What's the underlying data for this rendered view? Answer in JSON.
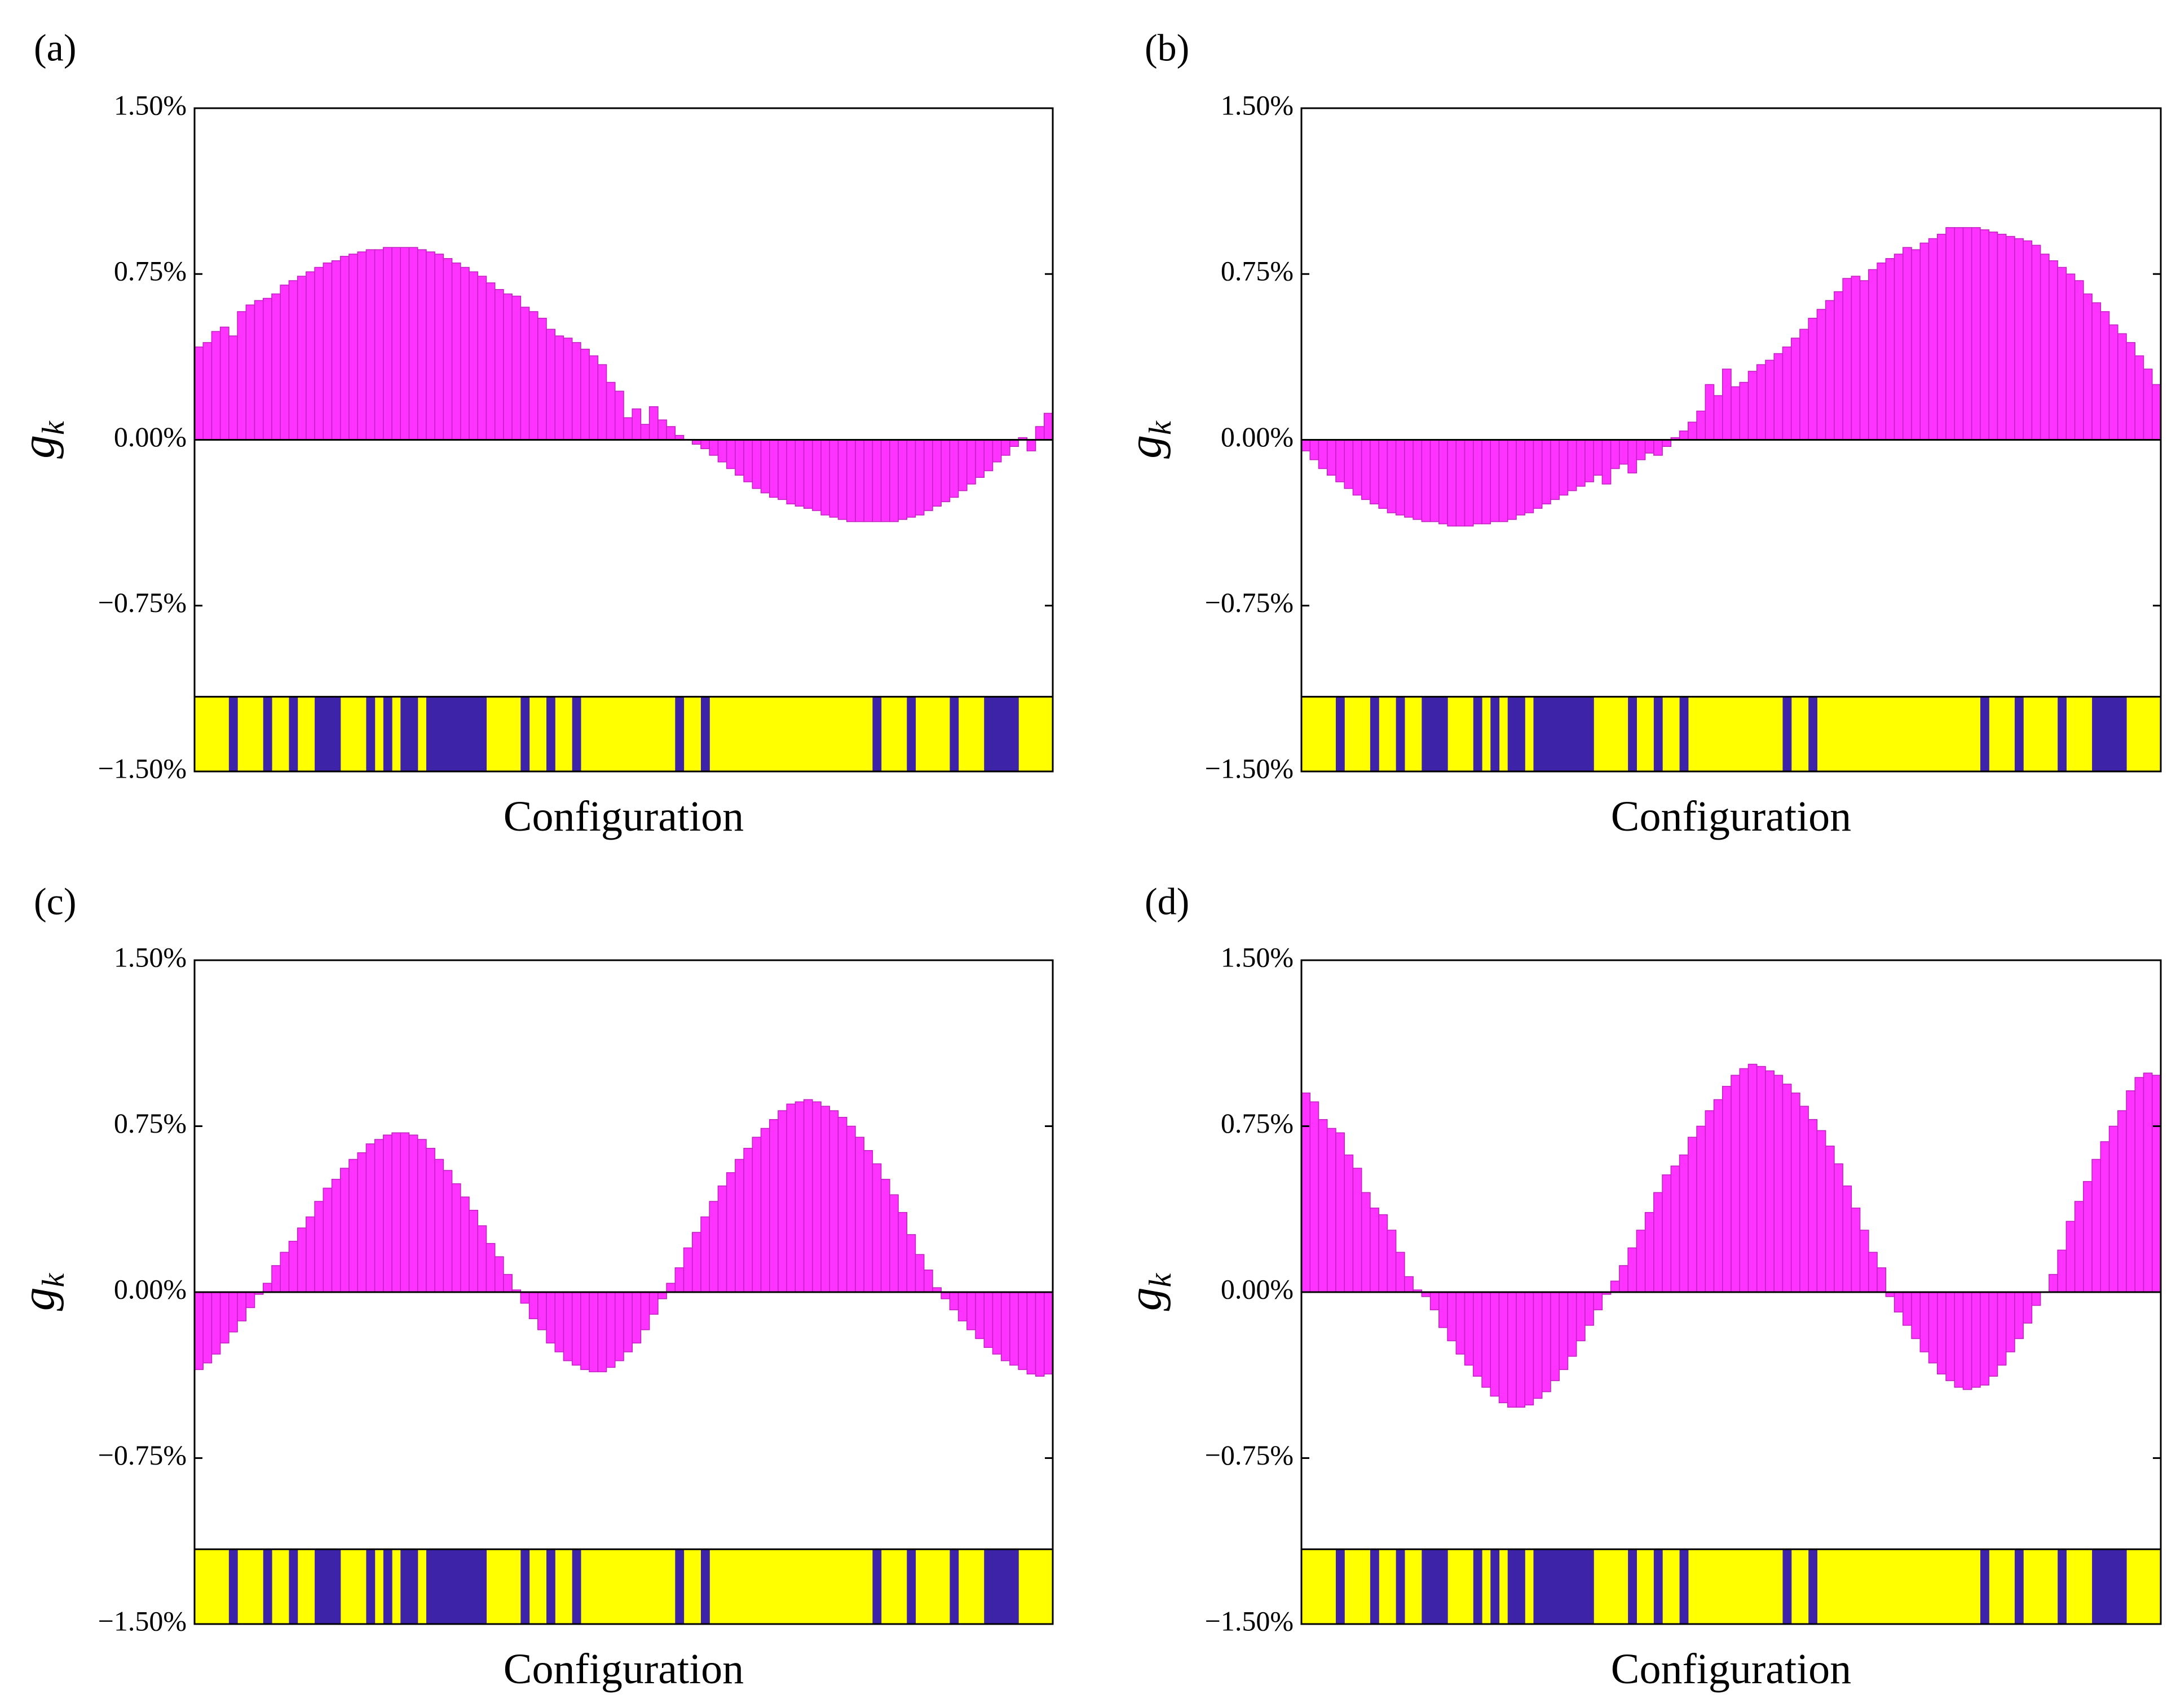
{
  "colors": {
    "bar_fill": "#ff33ff",
    "bar_edge": "#c21fc2",
    "config_yellow": "#ffff00",
    "config_blue": "#3c23a8",
    "axis": "#000000"
  },
  "chart_data": [
    {
      "panel_label": "(a)",
      "type": "bar",
      "xlabel": "Configuration",
      "ylabel_main": "g",
      "ylabel_sub": "k",
      "ylim": [
        -1.5,
        1.5
      ],
      "y_ticks": [
        "−1.50%",
        "−0.75%",
        "0.00%",
        "0.75%",
        "1.50%"
      ],
      "y_tick_values": [
        -1.5,
        -0.75,
        0,
        0.75,
        1.5
      ],
      "n_bars": 100,
      "series": [
        {
          "values": [
            0.42,
            0.44,
            0.49,
            0.51,
            0.47,
            0.58,
            0.61,
            0.63,
            0.64,
            0.66,
            0.7,
            0.72,
            0.74,
            0.76,
            0.78,
            0.8,
            0.81,
            0.83,
            0.84,
            0.85,
            0.86,
            0.86,
            0.87,
            0.87,
            0.87,
            0.87,
            0.86,
            0.85,
            0.84,
            0.82,
            0.8,
            0.78,
            0.76,
            0.74,
            0.71,
            0.68,
            0.66,
            0.65,
            0.6,
            0.58,
            0.55,
            0.5,
            0.47,
            0.46,
            0.44,
            0.41,
            0.38,
            0.34,
            0.26,
            0.22,
            0.1,
            0.14,
            0.07,
            0.15,
            0.09,
            0.06,
            0.02,
            0.0,
            -0.02,
            -0.04,
            -0.07,
            -0.1,
            -0.13,
            -0.16,
            -0.19,
            -0.22,
            -0.24,
            -0.26,
            -0.27,
            -0.29,
            -0.3,
            -0.31,
            -0.32,
            -0.34,
            -0.35,
            -0.36,
            -0.37,
            -0.37,
            -0.37,
            -0.37,
            -0.37,
            -0.37,
            -0.36,
            -0.35,
            -0.34,
            -0.32,
            -0.3,
            -0.28,
            -0.26,
            -0.23,
            -0.2,
            -0.17,
            -0.14,
            -0.1,
            -0.07,
            -0.03,
            0.01,
            -0.05,
            0.06,
            0.12
          ]
        }
      ],
      "configuration": [
        1,
        1,
        1,
        1,
        0,
        1,
        1,
        1,
        0,
        1,
        1,
        0,
        1,
        1,
        0,
        0,
        0,
        1,
        1,
        1,
        0,
        1,
        0,
        1,
        0,
        0,
        1,
        0,
        0,
        0,
        0,
        0,
        0,
        0,
        1,
        1,
        1,
        1,
        0,
        1,
        1,
        0,
        1,
        1,
        0,
        1,
        1,
        1,
        1,
        1,
        1,
        1,
        1,
        1,
        1,
        1,
        0,
        1,
        1,
        0,
        1,
        1,
        1,
        1,
        1,
        1,
        1,
        1,
        1,
        1,
        1,
        1,
        1,
        1,
        1,
        1,
        1,
        1,
        1,
        0,
        1,
        1,
        1,
        0,
        1,
        1,
        1,
        1,
        0,
        1,
        1,
        1,
        0,
        0,
        0,
        0,
        1,
        1,
        1,
        1
      ]
    },
    {
      "panel_label": "(b)",
      "type": "bar",
      "xlabel": "Configuration",
      "ylabel_main": "g",
      "ylabel_sub": "k",
      "ylim": [
        -1.5,
        1.5
      ],
      "y_ticks": [
        "−1.50%",
        "−0.75%",
        "0.00%",
        "0.75%",
        "1.50%"
      ],
      "y_tick_values": [
        -1.5,
        -0.75,
        0,
        0.75,
        1.5
      ],
      "n_bars": 100,
      "series": [
        {
          "values": [
            -0.05,
            -0.09,
            -0.13,
            -0.16,
            -0.19,
            -0.22,
            -0.25,
            -0.27,
            -0.29,
            -0.31,
            -0.33,
            -0.34,
            -0.35,
            -0.36,
            -0.37,
            -0.37,
            -0.38,
            -0.39,
            -0.39,
            -0.39,
            -0.38,
            -0.38,
            -0.37,
            -0.37,
            -0.36,
            -0.34,
            -0.33,
            -0.31,
            -0.29,
            -0.27,
            -0.25,
            -0.23,
            -0.21,
            -0.19,
            -0.16,
            -0.2,
            -0.13,
            -0.11,
            -0.15,
            -0.09,
            -0.06,
            -0.07,
            -0.03,
            0.01,
            0.04,
            0.08,
            0.13,
            0.25,
            0.2,
            0.32,
            0.24,
            0.26,
            0.31,
            0.34,
            0.36,
            0.39,
            0.42,
            0.46,
            0.5,
            0.55,
            0.59,
            0.63,
            0.67,
            0.73,
            0.74,
            0.72,
            0.77,
            0.8,
            0.82,
            0.84,
            0.87,
            0.86,
            0.89,
            0.91,
            0.93,
            0.96,
            0.96,
            0.96,
            0.96,
            0.95,
            0.94,
            0.93,
            0.92,
            0.91,
            0.9,
            0.88,
            0.84,
            0.81,
            0.78,
            0.75,
            0.72,
            0.66,
            0.62,
            0.58,
            0.52,
            0.48,
            0.44,
            0.38,
            0.32,
            0.25
          ]
        }
      ],
      "configuration": [
        1,
        1,
        1,
        1,
        0,
        1,
        1,
        1,
        0,
        1,
        1,
        0,
        1,
        1,
        0,
        0,
        0,
        1,
        1,
        1,
        0,
        1,
        0,
        1,
        0,
        0,
        1,
        0,
        0,
        0,
        0,
        0,
        0,
        0,
        1,
        1,
        1,
        1,
        0,
        1,
        1,
        0,
        1,
        1,
        0,
        1,
        1,
        1,
        1,
        1,
        1,
        1,
        1,
        1,
        1,
        1,
        0,
        1,
        1,
        0,
        1,
        1,
        1,
        1,
        1,
        1,
        1,
        1,
        1,
        1,
        1,
        1,
        1,
        1,
        1,
        1,
        1,
        1,
        1,
        0,
        1,
        1,
        1,
        0,
        1,
        1,
        1,
        1,
        0,
        1,
        1,
        1,
        0,
        0,
        0,
        0,
        1,
        1,
        1,
        1
      ]
    },
    {
      "panel_label": "(c)",
      "type": "bar",
      "xlabel": "Configuration",
      "ylabel_main": "g",
      "ylabel_sub": "k",
      "ylim": [
        -1.5,
        1.5
      ],
      "y_ticks": [
        "−1.50%",
        "−0.75%",
        "0.00%",
        "0.75%",
        "1.50%"
      ],
      "y_tick_values": [
        -1.5,
        -0.75,
        0,
        0.75,
        1.5
      ],
      "n_bars": 100,
      "series": [
        {
          "values": [
            -0.35,
            -0.32,
            -0.28,
            -0.23,
            -0.18,
            -0.13,
            -0.07,
            -0.01,
            0.04,
            0.12,
            0.18,
            0.23,
            0.29,
            0.34,
            0.41,
            0.47,
            0.51,
            0.56,
            0.6,
            0.63,
            0.67,
            0.69,
            0.71,
            0.72,
            0.72,
            0.71,
            0.69,
            0.65,
            0.6,
            0.55,
            0.49,
            0.43,
            0.37,
            0.3,
            0.22,
            0.16,
            0.08,
            0.01,
            -0.05,
            -0.12,
            -0.17,
            -0.23,
            -0.27,
            -0.31,
            -0.33,
            -0.35,
            -0.36,
            -0.36,
            -0.34,
            -0.31,
            -0.27,
            -0.23,
            -0.17,
            -0.1,
            -0.03,
            0.04,
            0.11,
            0.2,
            0.27,
            0.34,
            0.41,
            0.48,
            0.54,
            0.6,
            0.65,
            0.7,
            0.74,
            0.78,
            0.82,
            0.85,
            0.86,
            0.87,
            0.86,
            0.84,
            0.82,
            0.79,
            0.75,
            0.7,
            0.64,
            0.58,
            0.51,
            0.44,
            0.36,
            0.26,
            0.17,
            0.1,
            0.02,
            -0.03,
            -0.08,
            -0.13,
            -0.17,
            -0.21,
            -0.25,
            -0.28,
            -0.31,
            -0.33,
            -0.35,
            -0.37,
            -0.38,
            -0.37
          ]
        }
      ],
      "configuration": [
        1,
        1,
        1,
        1,
        0,
        1,
        1,
        1,
        0,
        1,
        1,
        0,
        1,
        1,
        0,
        0,
        0,
        1,
        1,
        1,
        0,
        1,
        0,
        1,
        0,
        0,
        1,
        0,
        0,
        0,
        0,
        0,
        0,
        0,
        1,
        1,
        1,
        1,
        0,
        1,
        1,
        0,
        1,
        1,
        0,
        1,
        1,
        1,
        1,
        1,
        1,
        1,
        1,
        1,
        1,
        1,
        0,
        1,
        1,
        0,
        1,
        1,
        1,
        1,
        1,
        1,
        1,
        1,
        1,
        1,
        1,
        1,
        1,
        1,
        1,
        1,
        1,
        1,
        1,
        0,
        1,
        1,
        1,
        0,
        1,
        1,
        1,
        1,
        0,
        1,
        1,
        1,
        0,
        0,
        0,
        0,
        1,
        1,
        1,
        1
      ]
    },
    {
      "panel_label": "(d)",
      "type": "bar",
      "xlabel": "Configuration",
      "ylabel_main": "g",
      "ylabel_sub": "k",
      "ylim": [
        -1.5,
        1.5
      ],
      "y_ticks": [
        "−1.50%",
        "−0.75%",
        "0.00%",
        "0.75%",
        "1.50%"
      ],
      "y_tick_values": [
        -1.5,
        -0.75,
        0,
        0.75,
        1.5
      ],
      "n_bars": 100,
      "series": [
        {
          "values": [
            0.9,
            0.86,
            0.78,
            0.74,
            0.72,
            0.62,
            0.56,
            0.45,
            0.38,
            0.35,
            0.28,
            0.18,
            0.07,
            0.01,
            -0.02,
            -0.08,
            -0.16,
            -0.22,
            -0.28,
            -0.33,
            -0.38,
            -0.43,
            -0.47,
            -0.5,
            -0.52,
            -0.52,
            -0.51,
            -0.48,
            -0.45,
            -0.4,
            -0.35,
            -0.29,
            -0.22,
            -0.15,
            -0.08,
            -0.01,
            0.05,
            0.12,
            0.2,
            0.28,
            0.36,
            0.45,
            0.53,
            0.57,
            0.62,
            0.7,
            0.75,
            0.82,
            0.87,
            0.93,
            0.98,
            1.01,
            1.03,
            1.02,
            1.0,
            0.98,
            0.94,
            0.9,
            0.84,
            0.78,
            0.73,
            0.66,
            0.58,
            0.48,
            0.38,
            0.28,
            0.18,
            0.11,
            -0.02,
            -0.09,
            -0.15,
            -0.21,
            -0.27,
            -0.32,
            -0.37,
            -0.4,
            -0.43,
            -0.44,
            -0.43,
            -0.42,
            -0.38,
            -0.33,
            -0.27,
            -0.21,
            -0.14,
            -0.06,
            0.0,
            0.08,
            0.19,
            0.32,
            0.41,
            0.5,
            0.6,
            0.68,
            0.75,
            0.82,
            0.91,
            0.97,
            0.99,
            0.98
          ]
        }
      ],
      "configuration": [
        1,
        1,
        1,
        1,
        0,
        1,
        1,
        1,
        0,
        1,
        1,
        0,
        1,
        1,
        0,
        0,
        0,
        1,
        1,
        1,
        0,
        1,
        0,
        1,
        0,
        0,
        1,
        0,
        0,
        0,
        0,
        0,
        0,
        0,
        1,
        1,
        1,
        1,
        0,
        1,
        1,
        0,
        1,
        1,
        0,
        1,
        1,
        1,
        1,
        1,
        1,
        1,
        1,
        1,
        1,
        1,
        0,
        1,
        1,
        0,
        1,
        1,
        1,
        1,
        1,
        1,
        1,
        1,
        1,
        1,
        1,
        1,
        1,
        1,
        1,
        1,
        1,
        1,
        1,
        0,
        1,
        1,
        1,
        0,
        1,
        1,
        1,
        1,
        0,
        1,
        1,
        1,
        0,
        0,
        0,
        0,
        1,
        1,
        1,
        1
      ]
    }
  ]
}
